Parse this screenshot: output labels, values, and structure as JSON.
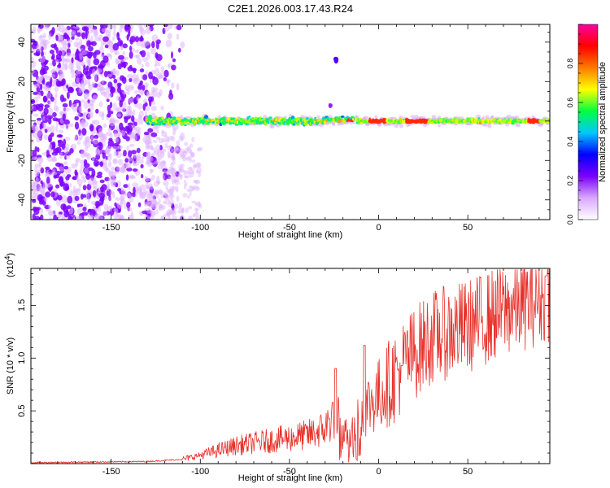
{
  "title": "C2E1.2026.003.17.43.R24",
  "chart_data": [
    {
      "type": "heatmap",
      "xlabel": "Height of straight line (km)",
      "ylabel": "Frequency (Hz)",
      "xlim": [
        -195,
        96
      ],
      "ylim": [
        -50,
        49
      ],
      "xticks": [
        -150,
        -100,
        -50,
        0,
        50
      ],
      "yticks": [
        -40,
        -20,
        0,
        20,
        40
      ],
      "colorbar": {
        "label": "Normalized spectral amplitude",
        "range": [
          0,
          1
        ],
        "ticks": [
          0.0,
          0.2,
          0.4,
          0.6,
          0.8
        ],
        "tick_labels": [
          "0.0",
          "0.2",
          "0.4",
          "0.6",
          "0.8"
        ],
        "stops": [
          "#ffffff",
          "#d9a8ff",
          "#7a00ff",
          "#0000ff",
          "#00c8ff",
          "#00ff40",
          "#ffff00",
          "#ff7a00",
          "#ff0000",
          "#ff00a0"
        ]
      },
      "features": [
        {
          "name": "low-altitude noise",
          "x_range": [
            -195,
            -110
          ],
          "y_range": [
            -50,
            49
          ],
          "amplitude": 0.2
        },
        {
          "name": "signal band",
          "x_range": [
            -130,
            96
          ],
          "y_center": 0,
          "halfwidth_hz": 3
        },
        {
          "name": "blob",
          "x": -24,
          "y": 31,
          "amplitude": 0.3
        }
      ]
    },
    {
      "type": "line",
      "xlabel": "Height of straight line (km)",
      "ylabel": "SNR (10 * v/v)",
      "multiplier": "(x10^4)",
      "multiplier_base": "(x10",
      "multiplier_exp": "4",
      "multiplier_close": ")",
      "xlim": [
        -195,
        96
      ],
      "ylim": [
        0,
        1.85
      ],
      "xticks": [
        -150,
        -100,
        -50,
        0,
        50
      ],
      "yticks": [
        0.5,
        1.0,
        1.5
      ],
      "ytick_labels": [
        "0.5",
        "1.0",
        "1.5"
      ],
      "color": "#e8302a",
      "trend": [
        [
          -195,
          0.01
        ],
        [
          -130,
          0.02
        ],
        [
          -110,
          0.04
        ],
        [
          -100,
          0.08
        ],
        [
          -80,
          0.17
        ],
        [
          -60,
          0.22
        ],
        [
          -40,
          0.27
        ],
        [
          -30,
          0.33
        ],
        [
          -24,
          0.5
        ],
        [
          -20,
          0.28
        ],
        [
          -15,
          0.3
        ],
        [
          -10,
          0.5
        ],
        [
          0,
          0.65
        ],
        [
          10,
          0.85
        ],
        [
          20,
          1.05
        ],
        [
          30,
          1.2
        ],
        [
          50,
          1.3
        ],
        [
          70,
          1.45
        ],
        [
          96,
          1.6
        ]
      ],
      "spikes": [
        [
          -24,
          0.9
        ],
        [
          -8,
          1.12
        ],
        [
          13,
          0.93
        ],
        [
          94,
          1.78
        ]
      ]
    }
  ]
}
